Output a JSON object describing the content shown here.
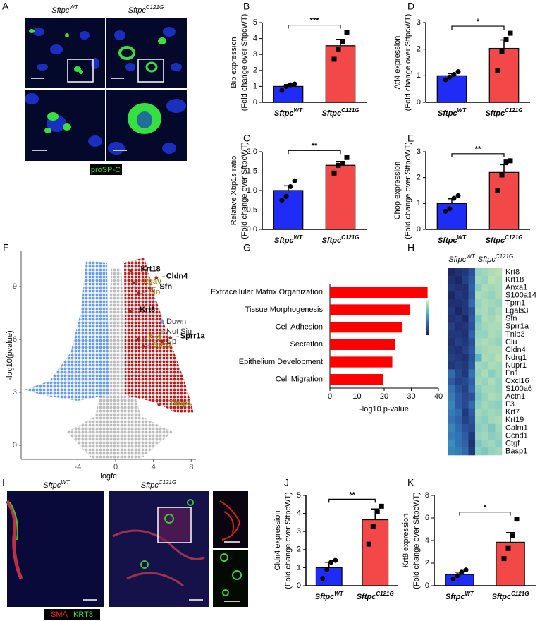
{
  "chart_data": [
    {
      "type": "bar",
      "label": "B",
      "categories": [
        {
          "name": "Sftpc",
          "sup": "WT"
        },
        {
          "name": "Sftpc",
          "sup": "C121G"
        }
      ],
      "values": [
        1.0,
        3.55
      ],
      "errors": [
        0.12,
        0.4
      ],
      "points": [
        [
          0.75,
          1.0,
          1.1,
          1.15
        ],
        [
          2.7,
          3.3,
          3.8,
          4.4
        ]
      ],
      "colors": [
        "#1f2cf5",
        "#f24848"
      ],
      "ylim": [
        0,
        5
      ],
      "yticks": [
        0,
        1,
        2,
        3,
        4,
        5
      ],
      "ylabel": [
        "Bip expression",
        "(Fold change over SftpcWT)"
      ],
      "significance": "***"
    },
    {
      "type": "bar",
      "label": "D",
      "categories": [
        {
          "name": "Sftpc",
          "sup": "WT"
        },
        {
          "name": "Sftpc",
          "sup": "C121G"
        }
      ],
      "values": [
        1.0,
        2.03
      ],
      "errors": [
        0.08,
        0.32
      ],
      "points": [
        [
          0.85,
          0.95,
          1.05,
          1.15
        ],
        [
          1.2,
          1.9,
          2.35,
          2.6
        ]
      ],
      "colors": [
        "#1f2cf5",
        "#f24848"
      ],
      "ylim": [
        0,
        3
      ],
      "yticks": [
        0,
        1,
        2,
        3
      ],
      "ylabel": [
        "Atf4 expression",
        "(Fold change over SftpcWT)"
      ],
      "significance": "*"
    },
    {
      "type": "bar",
      "label": "C",
      "categories": [
        {
          "name": "Sftpc",
          "sup": "WT"
        },
        {
          "name": "Sftpc",
          "sup": "C121G"
        }
      ],
      "values": [
        1.0,
        1.65
      ],
      "errors": [
        0.12,
        0.1
      ],
      "points": [
        [
          0.75,
          0.85,
          1.1,
          1.25
        ],
        [
          1.45,
          1.65,
          1.7,
          1.85
        ]
      ],
      "colors": [
        "#1f2cf5",
        "#f24848"
      ],
      "ylim": [
        0,
        2
      ],
      "yticks": [
        {
          "value": 0,
          "label": "0.0"
        },
        {
          "value": 0.5,
          "label": "0.5"
        },
        {
          "value": 1,
          "label": "1.0"
        },
        {
          "value": 1.5,
          "label": "1.5"
        },
        {
          "value": 2,
          "label": "2.0"
        }
      ],
      "ylabel": [
        "Relative Xbp1s ratio",
        "(Fold change over SftpcWT)"
      ],
      "significance": "**"
    },
    {
      "type": "bar",
      "label": "E",
      "categories": [
        {
          "name": "Sftpc",
          "sup": "WT"
        },
        {
          "name": "Sftpc",
          "sup": "C121G"
        }
      ],
      "values": [
        1.0,
        2.2
      ],
      "errors": [
        0.18,
        0.3
      ],
      "points": [
        [
          0.7,
          0.8,
          1.2,
          1.3
        ],
        [
          1.5,
          2.1,
          2.6,
          2.65
        ]
      ],
      "colors": [
        "#1f2cf5",
        "#f24848"
      ],
      "ylim": [
        0,
        3
      ],
      "yticks": [
        0,
        1,
        2,
        3
      ],
      "ylabel": [
        "Chop expression",
        "(Fold change over SftpcWT)"
      ],
      "significance": "**"
    },
    {
      "type": "scatter",
      "label": "F",
      "xlabel": "logfc",
      "ylabel": "-log10(pvalue)",
      "xlim": [
        -10,
        8.5
      ],
      "ylim": [
        -0.8,
        11
      ],
      "xticks": [
        -4,
        0,
        4,
        8
      ],
      "yticks": [
        0,
        3,
        6,
        9
      ],
      "legend": [
        {
          "name": "Down",
          "color": "#6a9de8"
        },
        {
          "name": "Not Sig",
          "color": "#b8b8b8"
        },
        {
          "name": "Up",
          "color": "#b22222"
        }
      ],
      "series": [
        {
          "name": "Krt18",
          "x": 1.6,
          "y": 9.9,
          "color": "#000000"
        },
        {
          "name": "Cldn4",
          "x": 4.3,
          "y": 9.5,
          "color": "#000000"
        },
        {
          "name": "Itgav",
          "x": 1.9,
          "y": 9.2,
          "color": "#a08a1a"
        },
        {
          "name": "Sfn",
          "x": 3.6,
          "y": 8.9,
          "color": "#000000"
        },
        {
          "name": "Eln",
          "x": 2.4,
          "y": 8.6,
          "color": "#a08a1a"
        },
        {
          "name": "Krt8",
          "x": 1.5,
          "y": 7.6,
          "color": "#000000"
        },
        {
          "name": "Fn1",
          "x": 2.4,
          "y": 6.0,
          "color": "#a08a1a"
        },
        {
          "name": "Spp1",
          "x": 2.9,
          "y": 5.6,
          "color": "#a08a1a"
        },
        {
          "name": "Sprr1a",
          "x": 5.8,
          "y": 6.1,
          "color": "#000000"
        },
        {
          "name": "Timp1",
          "x": 4.6,
          "y": 2.3,
          "color": "#a08a1a"
        }
      ]
    },
    {
      "type": "hbar",
      "label": "G",
      "categories": [
        "Extracellular Matrix Organization",
        "Tissue Morphogenesis",
        "Cell Adhesion",
        "Secretion",
        "Epithelium Development",
        "Cell Migration"
      ],
      "values": [
        36,
        29.5,
        26.5,
        24,
        23,
        19.5
      ],
      "color": "#ff0000",
      "xlim": [
        0,
        40
      ],
      "xticks": [
        0,
        10,
        20,
        30,
        40
      ],
      "xlabel": "-log10 p-value"
    },
    {
      "type": "heatmap",
      "label": "H",
      "groups": [
        {
          "name": "Sftpc",
          "sup": "WT"
        },
        {
          "name": "Sftpc",
          "sup": "C121G"
        }
      ],
      "zlim": [
        -1.5,
        1.5
      ],
      "rows": [
        "Krt8",
        "Krt18",
        "Anxa1",
        "S100a14",
        "Tpm1",
        "Lgals3",
        "Sfn",
        "Sprr1a",
        "Tnip3",
        "Clu",
        "Cldn4",
        "Ndrg1",
        "Nupr1",
        "Fn1",
        "Cxcl16",
        "S100a6",
        "Actn1",
        "F3",
        "Krt7",
        "Krt19",
        "Calm1",
        "Ccnd1",
        "Ctgf",
        "Basp1"
      ],
      "values": [
        [
          -1.4,
          -1.3,
          -1.2,
          -0.9,
          0.8,
          0.9,
          1.0,
          1.1
        ],
        [
          -1.3,
          -1.4,
          -1.1,
          -0.8,
          0.9,
          0.8,
          1.1,
          1.0
        ],
        [
          -1.2,
          -1.3,
          -1.3,
          -0.7,
          0.7,
          1.0,
          0.9,
          1.0
        ],
        [
          -1.4,
          -1.2,
          -1.3,
          -0.8,
          1.0,
          0.9,
          0.8,
          1.0
        ],
        [
          -1.3,
          -1.3,
          -1.2,
          -0.6,
          0.8,
          1.0,
          0.9,
          0.8
        ],
        [
          -1.2,
          -1.4,
          -1.2,
          -0.9,
          0.9,
          1.0,
          0.8,
          1.0
        ],
        [
          -1.3,
          -1.2,
          -1.4,
          -0.8,
          0.6,
          1.0,
          0.9,
          1.1
        ],
        [
          -1.1,
          -1.3,
          -1.2,
          -0.9,
          0.7,
          0.9,
          1.0,
          1.0
        ],
        [
          -1.2,
          -1.2,
          -1.3,
          -0.7,
          0.8,
          0.8,
          1.0,
          0.9
        ],
        [
          -1.3,
          -1.1,
          -1.2,
          -0.9,
          0.9,
          1.0,
          0.9,
          0.8
        ],
        [
          -1.2,
          -1.3,
          -1.1,
          -0.8,
          0.8,
          0.9,
          1.0,
          1.0
        ],
        [
          -1.1,
          -1.2,
          -1.3,
          -0.9,
          0.3,
          1.0,
          0.9,
          1.1
        ],
        [
          -1.2,
          -1.1,
          -1.2,
          -0.8,
          0.9,
          0.8,
          1.0,
          0.9
        ],
        [
          -0.6,
          -1.0,
          -1.2,
          -0.5,
          0.8,
          1.0,
          0.7,
          0.9
        ],
        [
          -0.8,
          -1.1,
          -1.0,
          -0.7,
          0.9,
          0.8,
          1.0,
          0.8
        ],
        [
          -0.5,
          -0.9,
          -1.1,
          -0.6,
          0.7,
          0.9,
          0.9,
          0.8
        ],
        [
          -0.4,
          -0.8,
          -1.0,
          -0.9,
          0.6,
          0.8,
          1.0,
          0.9
        ],
        [
          -0.3,
          -0.8,
          -1.0,
          -0.6,
          0.7,
          0.9,
          0.8,
          0.7
        ],
        [
          -0.4,
          -0.6,
          -1.2,
          -0.8,
          0.9,
          0.8,
          0.9,
          0.8
        ],
        [
          -0.5,
          -0.7,
          -1.1,
          -0.9,
          0.8,
          0.7,
          0.9,
          1.0
        ],
        [
          -0.3,
          -0.6,
          -0.9,
          -1.0,
          0.7,
          0.8,
          0.6,
          0.9
        ],
        [
          -0.4,
          -0.5,
          -0.8,
          -1.2,
          0.8,
          0.9,
          0.7,
          0.8
        ],
        [
          -0.2,
          -0.5,
          -0.7,
          -1.3,
          0.6,
          0.8,
          0.9,
          0.7
        ],
        [
          -0.3,
          -0.4,
          -0.6,
          -1.2,
          0.7,
          0.6,
          0.8,
          0.9
        ]
      ]
    },
    {
      "type": "bar",
      "label": "J",
      "categories": [
        {
          "name": "Sftpc",
          "sup": "WT"
        },
        {
          "name": "Sftpc",
          "sup": "C121G"
        }
      ],
      "values": [
        1.0,
        3.65
      ],
      "errors": [
        0.3,
        0.6
      ],
      "points": [
        [
          0.4,
          0.9,
          1.3,
          1.4
        ],
        [
          2.3,
          3.3,
          4.1,
          4.4
        ]
      ],
      "colors": [
        "#1f2cf5",
        "#f24848"
      ],
      "ylim": [
        0,
        5
      ],
      "yticks": [
        0,
        1,
        2,
        3,
        4,
        5
      ],
      "ylabel": [
        "Cldn4 expression",
        "(Fold change over SftpcWT)"
      ],
      "significance": "**"
    },
    {
      "type": "bar",
      "label": "K",
      "categories": [
        {
          "name": "Sftpc",
          "sup": "WT"
        },
        {
          "name": "Sftpc",
          "sup": "C121G"
        }
      ],
      "values": [
        1.0,
        3.85
      ],
      "errors": [
        0.2,
        0.85
      ],
      "points": [
        [
          0.6,
          0.9,
          1.2,
          1.4
        ],
        [
          2.4,
          3.3,
          4.4,
          5.9
        ]
      ],
      "colors": [
        "#1f2cf5",
        "#f24848"
      ],
      "ylim": [
        0,
        8
      ],
      "yticks": [
        0,
        2,
        4,
        6,
        8
      ],
      "ylabel": [
        "Krt8 expression",
        "(Fold change over SftpcWT)"
      ],
      "significance": "*"
    }
  ],
  "images": [
    {
      "label": "A",
      "titles": [
        {
          "name": "Sftpc",
          "sup": "WT"
        },
        {
          "name": "Sftpc",
          "sup": "C121G"
        }
      ],
      "stains": [
        "proSP-C"
      ]
    },
    {
      "label": "I",
      "titles": [
        {
          "name": "Sftpc",
          "sup": "WT"
        },
        {
          "name": "Sftpc",
          "sup": "C121G"
        }
      ],
      "stains": [
        "SMA",
        "KRT8"
      ]
    }
  ]
}
